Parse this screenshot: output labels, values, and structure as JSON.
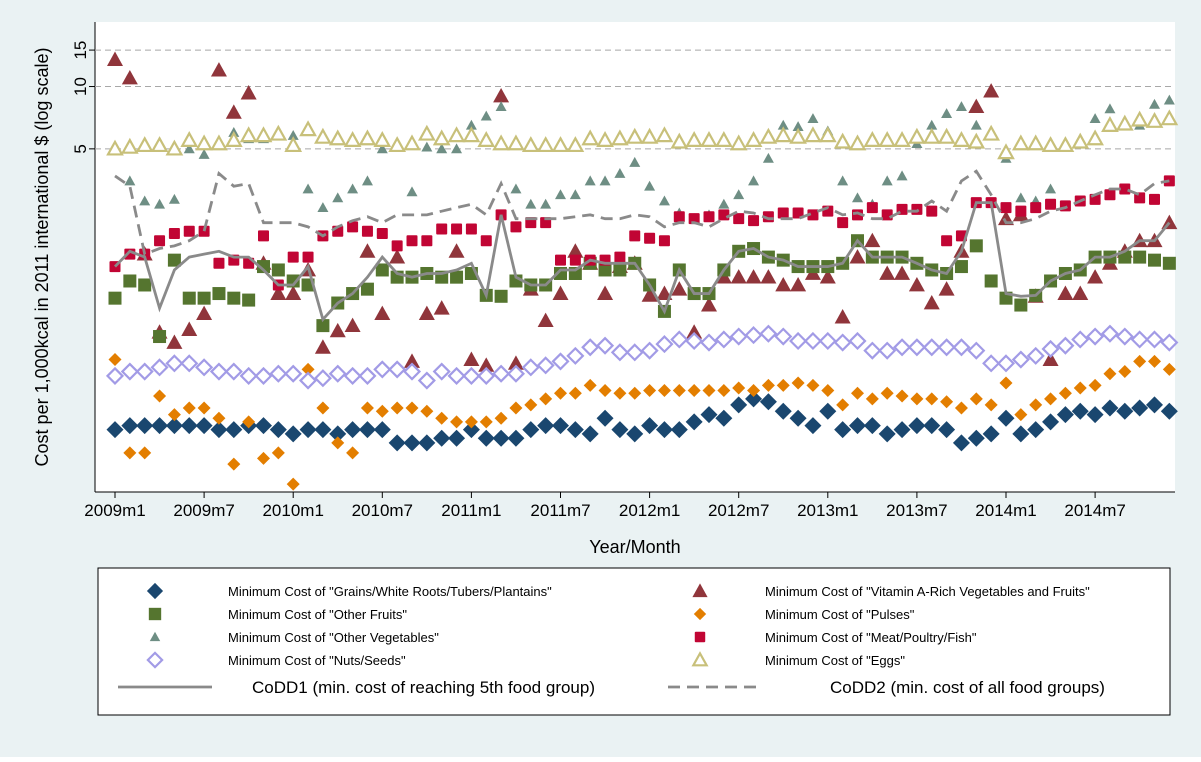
{
  "chart_data": {
    "type": "scatter",
    "y_label": "Cost per 1,000kcal in 2011 international $ (log scale)",
    "x_label": "Year/Month",
    "log_y": true,
    "grid": true,
    "ylim": [
      0.11,
      20.5
    ],
    "yticks": [
      5,
      10,
      15
    ],
    "categories": [
      "2009m1",
      null,
      null,
      null,
      null,
      null,
      "2009m7",
      null,
      null,
      null,
      null,
      null,
      "2010m1",
      null,
      null,
      null,
      null,
      null,
      "2010m7",
      null,
      null,
      null,
      null,
      null,
      "2011m1",
      null,
      null,
      null,
      null,
      null,
      "2011m7",
      null,
      null,
      null,
      null,
      null,
      "2012m1",
      null,
      null,
      null,
      null,
      null,
      "2012m7",
      null,
      null,
      null,
      null,
      null,
      "2013m1",
      null,
      null,
      null,
      null,
      null,
      "2013m7",
      null,
      null,
      null,
      null,
      null,
      "2014m1",
      null,
      null,
      null,
      null,
      null,
      "2014m7",
      null,
      null,
      null,
      null,
      null
    ],
    "series": [
      {
        "name": "Minimum Cost of \"Grains/White Roots/Tubers/Plantains\"",
        "color": "#1a476f",
        "marker": "diamond",
        "values": [
          0.22,
          0.23,
          0.23,
          0.23,
          0.23,
          0.23,
          0.23,
          0.22,
          0.22,
          0.23,
          0.23,
          0.22,
          0.21,
          0.22,
          0.22,
          0.21,
          0.22,
          0.22,
          0.22,
          0.19,
          0.19,
          0.19,
          0.2,
          0.2,
          0.22,
          0.2,
          0.2,
          0.2,
          0.22,
          0.23,
          0.23,
          0.22,
          0.21,
          0.25,
          0.22,
          0.21,
          0.23,
          0.22,
          0.22,
          0.24,
          0.26,
          0.25,
          0.29,
          0.31,
          0.3,
          0.27,
          0.25,
          0.23,
          0.27,
          0.22,
          0.23,
          0.23,
          0.21,
          0.22,
          0.23,
          0.23,
          0.22,
          0.19,
          0.2,
          0.21,
          0.25,
          0.21,
          0.22,
          0.24,
          0.26,
          0.27,
          0.26,
          0.28,
          0.27,
          0.28,
          0.29,
          0.27
        ]
      },
      {
        "name": "Minimum Cost of \"Vitamin A-Rich Vegetables and Fruits\"",
        "color": "#90353b",
        "marker": "triangle",
        "values": [
          13.5,
          11,
          1.55,
          0.65,
          0.58,
          0.67,
          0.8,
          12,
          7.5,
          9.3,
          1.4,
          1.0,
          1.0,
          1.3,
          0.55,
          0.66,
          0.7,
          1.6,
          0.8,
          1.5,
          0.47,
          0.8,
          0.85,
          1.6,
          0.48,
          0.45,
          9,
          0.46,
          1.05,
          0.74,
          1.0,
          1.6,
          1.4,
          1.0,
          1.35,
          1.4,
          0.98,
          1.0,
          1.05,
          0.65,
          0.88,
          1.2,
          1.2,
          1.2,
          1.2,
          1.1,
          1.1,
          1.25,
          1.2,
          0.77,
          1.5,
          1.8,
          1.25,
          1.25,
          1.1,
          0.9,
          1.05,
          1.6,
          8,
          9.5,
          2.3,
          2.4,
          0.97,
          0.48,
          1.0,
          1.0,
          1.2,
          1.4,
          1.6,
          1.8,
          1.8,
          2.2
        ]
      },
      {
        "name": "Minimum Cost of \"Other Fruits\"",
        "color": "#55752f",
        "marker": "square",
        "values": [
          0.95,
          1.15,
          1.1,
          0.62,
          1.45,
          0.95,
          0.95,
          1,
          0.95,
          0.93,
          1.35,
          1.3,
          1.15,
          1.1,
          0.7,
          0.9,
          1,
          1.05,
          1.3,
          1.2,
          1.2,
          1.25,
          1.2,
          1.2,
          1.25,
          0.98,
          0.97,
          1.15,
          1.1,
          1.1,
          1.25,
          1.25,
          1.4,
          1.3,
          1.3,
          1.4,
          1.1,
          0.82,
          1.3,
          1,
          1,
          1.3,
          1.6,
          1.65,
          1.5,
          1.45,
          1.35,
          1.35,
          1.35,
          1.4,
          1.8,
          1.5,
          1.5,
          1.5,
          1.4,
          1.3,
          1.25,
          1.35,
          1.7,
          1.15,
          0.95,
          0.88,
          0.98,
          1.15,
          1.25,
          1.3,
          1.5,
          1.5,
          1.5,
          1.5,
          1.45,
          1.4
        ]
      },
      {
        "name": "Minimum Cost of \"Pulses\"",
        "color": "#e37e00",
        "marker": "diamond-small",
        "values": [
          0.48,
          0.17,
          0.17,
          0.32,
          0.26,
          0.28,
          0.28,
          0.25,
          0.15,
          0.24,
          0.16,
          0.17,
          0.12,
          0.43,
          0.28,
          0.19,
          0.17,
          0.28,
          0.27,
          0.28,
          0.28,
          0.27,
          0.25,
          0.24,
          0.24,
          0.24,
          0.25,
          0.28,
          0.29,
          0.31,
          0.33,
          0.33,
          0.36,
          0.34,
          0.33,
          0.33,
          0.34,
          0.34,
          0.34,
          0.34,
          0.34,
          0.34,
          0.35,
          0.34,
          0.36,
          0.36,
          0.37,
          0.36,
          0.34,
          0.29,
          0.33,
          0.31,
          0.33,
          0.32,
          0.31,
          0.31,
          0.3,
          0.28,
          0.31,
          0.29,
          0.37,
          0.26,
          0.29,
          0.31,
          0.33,
          0.35,
          0.36,
          0.41,
          0.42,
          0.47,
          0.47,
          0.43
        ]
      },
      {
        "name": "Minimum Cost of \"Other Vegetables\"",
        "color": "#6e8e84",
        "marker": "triangle-small",
        "values": [
          5,
          3.5,
          2.8,
          2.7,
          2.85,
          5,
          4.7,
          5.3,
          6,
          5.6,
          5.6,
          5.9,
          5.8,
          3.2,
          2.6,
          2.9,
          3.2,
          3.5,
          5,
          5.1,
          3.1,
          5.1,
          5,
          5,
          6.5,
          7.2,
          8,
          3.2,
          2.7,
          2.7,
          3,
          3,
          3.5,
          3.5,
          3.8,
          4.3,
          3.3,
          2.8,
          2.45,
          2.3,
          2.4,
          2.7,
          3,
          3.5,
          4.5,
          6.5,
          6.4,
          7,
          6.1,
          3.5,
          2.9,
          2.7,
          3.5,
          3.7,
          5.3,
          6.5,
          7.4,
          8,
          6.5,
          6,
          4.5,
          2.9,
          2.8,
          3.2,
          5.3,
          5.6,
          7,
          7.8,
          6.8,
          6.5,
          8.2,
          8.6
        ]
      },
      {
        "name": "Minimum Cost of \"Meat/Poultry/Fish\"",
        "color": "#c10534",
        "marker": "square-small",
        "values": [
          1.35,
          1.55,
          1.55,
          1.8,
          1.95,
          2,
          2,
          1.4,
          1.45,
          1.4,
          1.9,
          1.1,
          1.5,
          1.5,
          1.9,
          2,
          2.1,
          2,
          1.95,
          1.7,
          1.8,
          1.8,
          2.05,
          2.05,
          2.05,
          1.8,
          2.4,
          2.1,
          2.2,
          2.2,
          1.45,
          1.45,
          1.45,
          1.45,
          1.5,
          1.9,
          1.85,
          1.8,
          2.35,
          2.3,
          2.35,
          2.4,
          2.3,
          2.25,
          2.35,
          2.45,
          2.45,
          2.4,
          2.5,
          2.2,
          2.4,
          2.6,
          2.4,
          2.55,
          2.55,
          2.5,
          1.8,
          1.9,
          2.75,
          2.75,
          2.6,
          2.5,
          2.6,
          2.7,
          2.65,
          2.8,
          2.85,
          3,
          3.2,
          2.9,
          2.85,
          3.5
        ]
      },
      {
        "name": "Minimum Cost of \"Nuts/Seeds\"",
        "color": "#a29be6",
        "marker": "diamond-hollow",
        "values": [
          0.4,
          0.42,
          0.42,
          0.44,
          0.46,
          0.46,
          0.44,
          0.42,
          0.42,
          0.4,
          0.4,
          0.41,
          0.41,
          0.38,
          0.39,
          0.41,
          0.4,
          0.4,
          0.43,
          0.43,
          0.42,
          0.38,
          0.42,
          0.4,
          0.4,
          0.4,
          0.41,
          0.41,
          0.44,
          0.45,
          0.47,
          0.5,
          0.55,
          0.56,
          0.52,
          0.52,
          0.53,
          0.57,
          0.6,
          0.59,
          0.58,
          0.6,
          0.62,
          0.63,
          0.64,
          0.62,
          0.59,
          0.59,
          0.59,
          0.58,
          0.59,
          0.53,
          0.53,
          0.55,
          0.55,
          0.55,
          0.55,
          0.55,
          0.53,
          0.46,
          0.46,
          0.48,
          0.5,
          0.54,
          0.56,
          0.6,
          0.62,
          0.64,
          0.62,
          0.6,
          0.6,
          0.58
        ]
      },
      {
        "name": "Minimum Cost of \"Eggs\"",
        "color": "#c8c07a",
        "marker": "triangle-hollow",
        "values": [
          5,
          5.1,
          5.2,
          5.2,
          5,
          5.5,
          5.3,
          5.3,
          5.5,
          5.8,
          5.8,
          5.9,
          5.2,
          6.2,
          5.7,
          5.6,
          5.5,
          5.6,
          5.5,
          5.2,
          5.3,
          5.9,
          5.6,
          5.8,
          5.8,
          5.5,
          5.3,
          5.3,
          5.2,
          5.2,
          5.2,
          5.2,
          5.6,
          5.5,
          5.6,
          5.7,
          5.7,
          5.8,
          5.4,
          5.5,
          5.5,
          5.5,
          5.3,
          5.5,
          5.7,
          5.8,
          5.7,
          5.8,
          5.8,
          5.4,
          5.3,
          5.5,
          5.5,
          5.5,
          5.7,
          5.7,
          5.7,
          5.5,
          5.4,
          5.9,
          4.8,
          5.3,
          5.3,
          5.2,
          5.2,
          5.4,
          5.6,
          6.5,
          6.6,
          6.9,
          6.8,
          7
        ]
      },
      {
        "name": "CoDD1 (min. cost of reaching 5th food group)",
        "color": "#8a8a8a",
        "marker": "line",
        "values": [
          1.35,
          1.6,
          1.5,
          0.85,
          1.3,
          1.5,
          1.55,
          1.6,
          1.5,
          1.5,
          1.3,
          1.1,
          1.1,
          1.35,
          0.75,
          0.9,
          1,
          1.2,
          1.5,
          1.25,
          1.2,
          1.25,
          1.25,
          1.3,
          1.4,
          0.98,
          2.4,
          1.2,
          1.1,
          1.1,
          1.3,
          1.3,
          1.45,
          1.4,
          1.4,
          1.4,
          1.1,
          0.82,
          1.3,
          1,
          1,
          1.3,
          1.6,
          1.65,
          1.5,
          1.45,
          1.35,
          1.35,
          1.35,
          1.4,
          1.8,
          1.5,
          1.5,
          1.5,
          1.4,
          1.3,
          1.25,
          1.6,
          2.75,
          2.75,
          1,
          0.97,
          0.98,
          1.15,
          1.25,
          1.3,
          1.5,
          1.5,
          1.6,
          1.8,
          1.8,
          2.2
        ]
      },
      {
        "name": "CoDD2 (min. cost of all food groups)",
        "color": "#8a8a8a",
        "marker": "dash",
        "values": [
          3.7,
          3.3,
          1.55,
          1.65,
          1.7,
          1.8,
          2,
          3.8,
          3.3,
          3.4,
          2.2,
          2.2,
          2.2,
          2.1,
          1.9,
          2.1,
          2.25,
          2.35,
          2.2,
          2.4,
          2.4,
          2.4,
          2.5,
          2.6,
          2.7,
          2.4,
          3.4,
          2.3,
          2.3,
          2.3,
          2.3,
          2.35,
          2.4,
          2.3,
          2.3,
          2.4,
          2.35,
          2.1,
          2.2,
          2.2,
          2.1,
          2.3,
          2.5,
          2.45,
          2.3,
          2.3,
          2.3,
          2.45,
          2.6,
          2.4,
          2.45,
          2.3,
          2.3,
          2.5,
          2.5,
          2.8,
          2.5,
          3.5,
          3.9,
          3,
          2.2,
          2.2,
          2.3,
          2.5,
          2.6,
          2.8,
          3,
          3.2,
          3.2,
          3,
          3.4,
          3.5
        ]
      }
    ]
  }
}
